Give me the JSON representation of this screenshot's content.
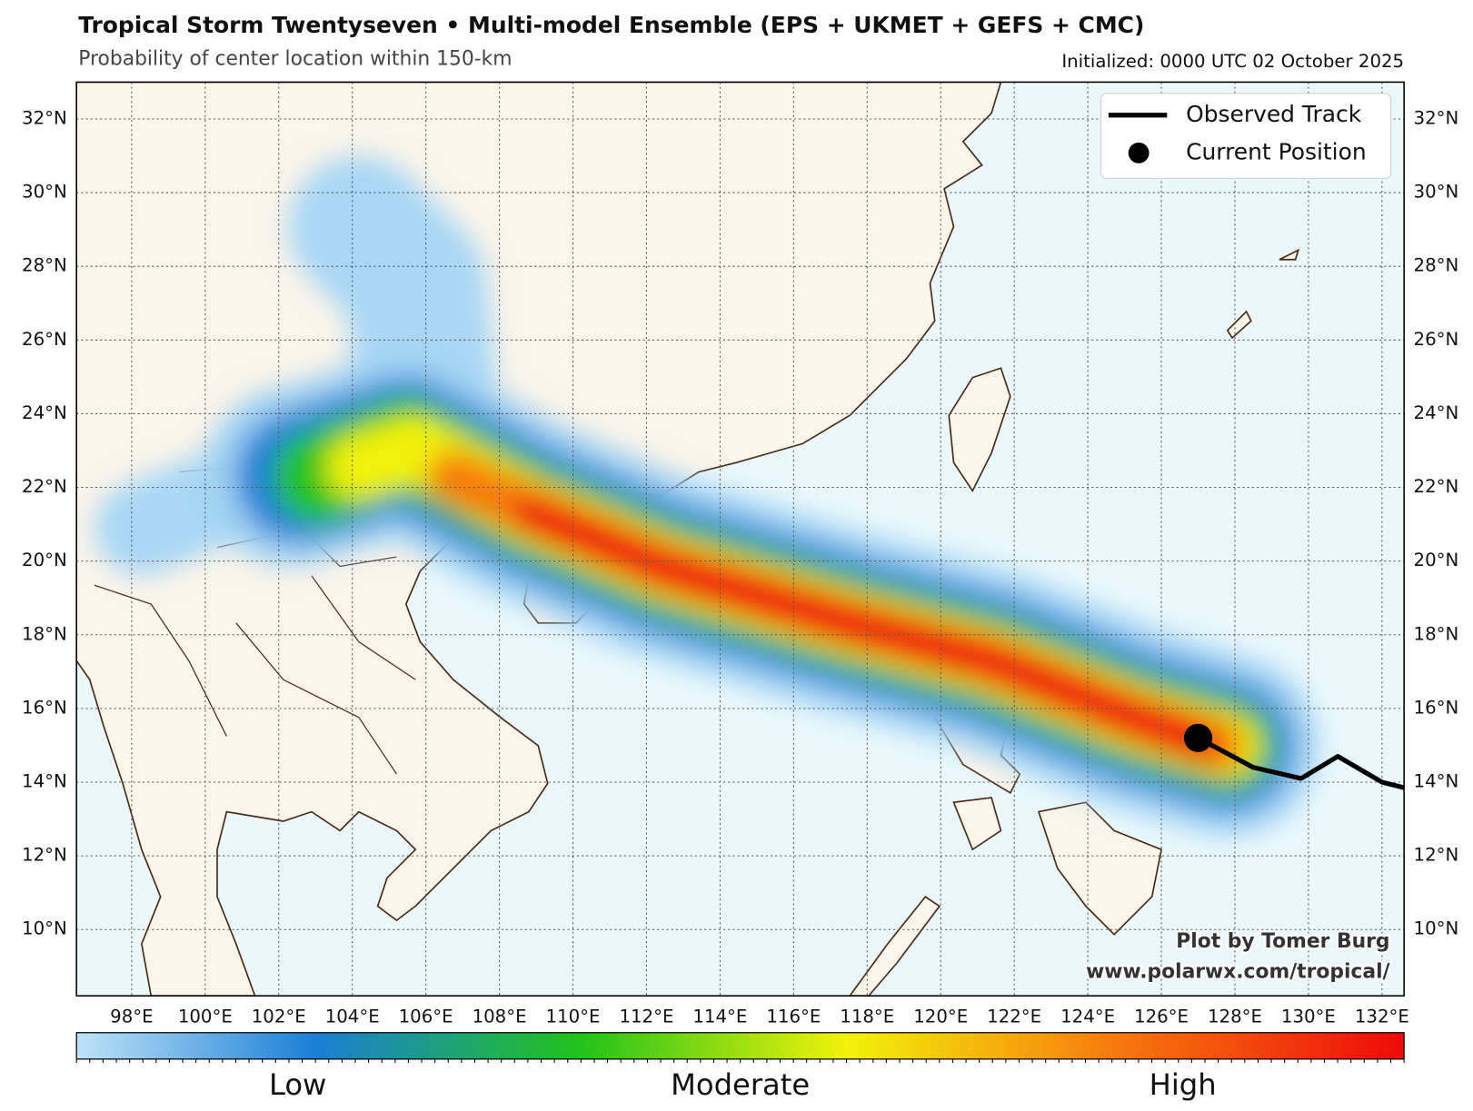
{
  "chart_data": {
    "type": "map",
    "title": "Tropical Storm Twentyseven • Multi-model Ensemble (EPS + UKMET + GEFS + CMC)",
    "subtitle": "Probability of center location within 150-km",
    "initialized": "Initialized: 0000 UTC 02 October 2025",
    "xlim": [
      96.5,
      132.6
    ],
    "ylim": [
      8.2,
      33.0
    ],
    "xticks": [
      {
        "value": 98,
        "label": "98°E"
      },
      {
        "value": 100,
        "label": "100°E"
      },
      {
        "value": 102,
        "label": "102°E"
      },
      {
        "value": 104,
        "label": "104°E"
      },
      {
        "value": 106,
        "label": "106°E"
      },
      {
        "value": 108,
        "label": "108°E"
      },
      {
        "value": 110,
        "label": "110°E"
      },
      {
        "value": 112,
        "label": "112°E"
      },
      {
        "value": 114,
        "label": "114°E"
      },
      {
        "value": 116,
        "label": "116°E"
      },
      {
        "value": 118,
        "label": "118°E"
      },
      {
        "value": 120,
        "label": "120°E"
      },
      {
        "value": 122,
        "label": "122°E"
      },
      {
        "value": 124,
        "label": "124°E"
      },
      {
        "value": 126,
        "label": "126°E"
      },
      {
        "value": 128,
        "label": "128°E"
      },
      {
        "value": 130,
        "label": "130°E"
      },
      {
        "value": 132,
        "label": "132°E"
      }
    ],
    "yticks": [
      {
        "value": 10,
        "label": "10°N"
      },
      {
        "value": 12,
        "label": "12°N"
      },
      {
        "value": 14,
        "label": "14°N"
      },
      {
        "value": 16,
        "label": "16°N"
      },
      {
        "value": 18,
        "label": "18°N"
      },
      {
        "value": 20,
        "label": "20°N"
      },
      {
        "value": 22,
        "label": "22°N"
      },
      {
        "value": 24,
        "label": "24°N"
      },
      {
        "value": 26,
        "label": "26°N"
      },
      {
        "value": 28,
        "label": "28°N"
      },
      {
        "value": 30,
        "label": "30°N"
      },
      {
        "value": 32,
        "label": "32°N"
      }
    ],
    "grid": true,
    "track": {
      "name": "Observed Track",
      "color": "#000000",
      "x": [
        127.0,
        128.5,
        129.8,
        130.8,
        132.0,
        132.6
      ],
      "y": [
        15.2,
        14.4,
        14.1,
        14.7,
        14.0,
        13.85
      ]
    },
    "current": {
      "name": "Current Position",
      "color": "#000000",
      "x": 127.0,
      "y": 15.2
    },
    "colorbar": {
      "labels": [
        "Low",
        "Moderate",
        "High"
      ]
    },
    "credit": [
      "Plot by Tomer Burg",
      "www.polarwx.com/tropical/"
    ]
  }
}
